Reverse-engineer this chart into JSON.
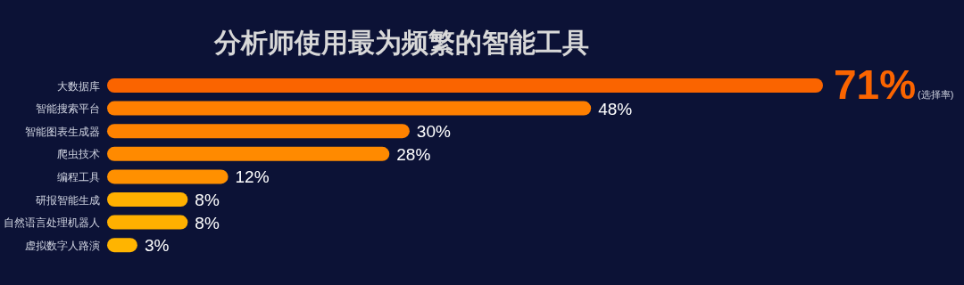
{
  "chart_data": {
    "type": "bar",
    "orientation": "horizontal",
    "title": "分析师使用最为频繁的智能工具",
    "categories": [
      "大数据库",
      "智能搜索平台",
      "智能图表生成器",
      "爬虫技术",
      "编程工具",
      "研报智能生成",
      "自然语言处理机器人",
      "虚拟数字人路演"
    ],
    "values": [
      71,
      48,
      30,
      28,
      12,
      8,
      8,
      3
    ],
    "colors": [
      "#fa6400",
      "#ff7f00",
      "#ff8200",
      "#ff8a00",
      "#ff9000",
      "#ffb000",
      "#ffb000",
      "#ffb400"
    ],
    "value_labels": [
      "71%",
      "48%",
      "30%",
      "28%",
      "12%",
      "8%",
      "8%",
      "3%"
    ],
    "annotations": [
      "(选择率)"
    ]
  }
}
